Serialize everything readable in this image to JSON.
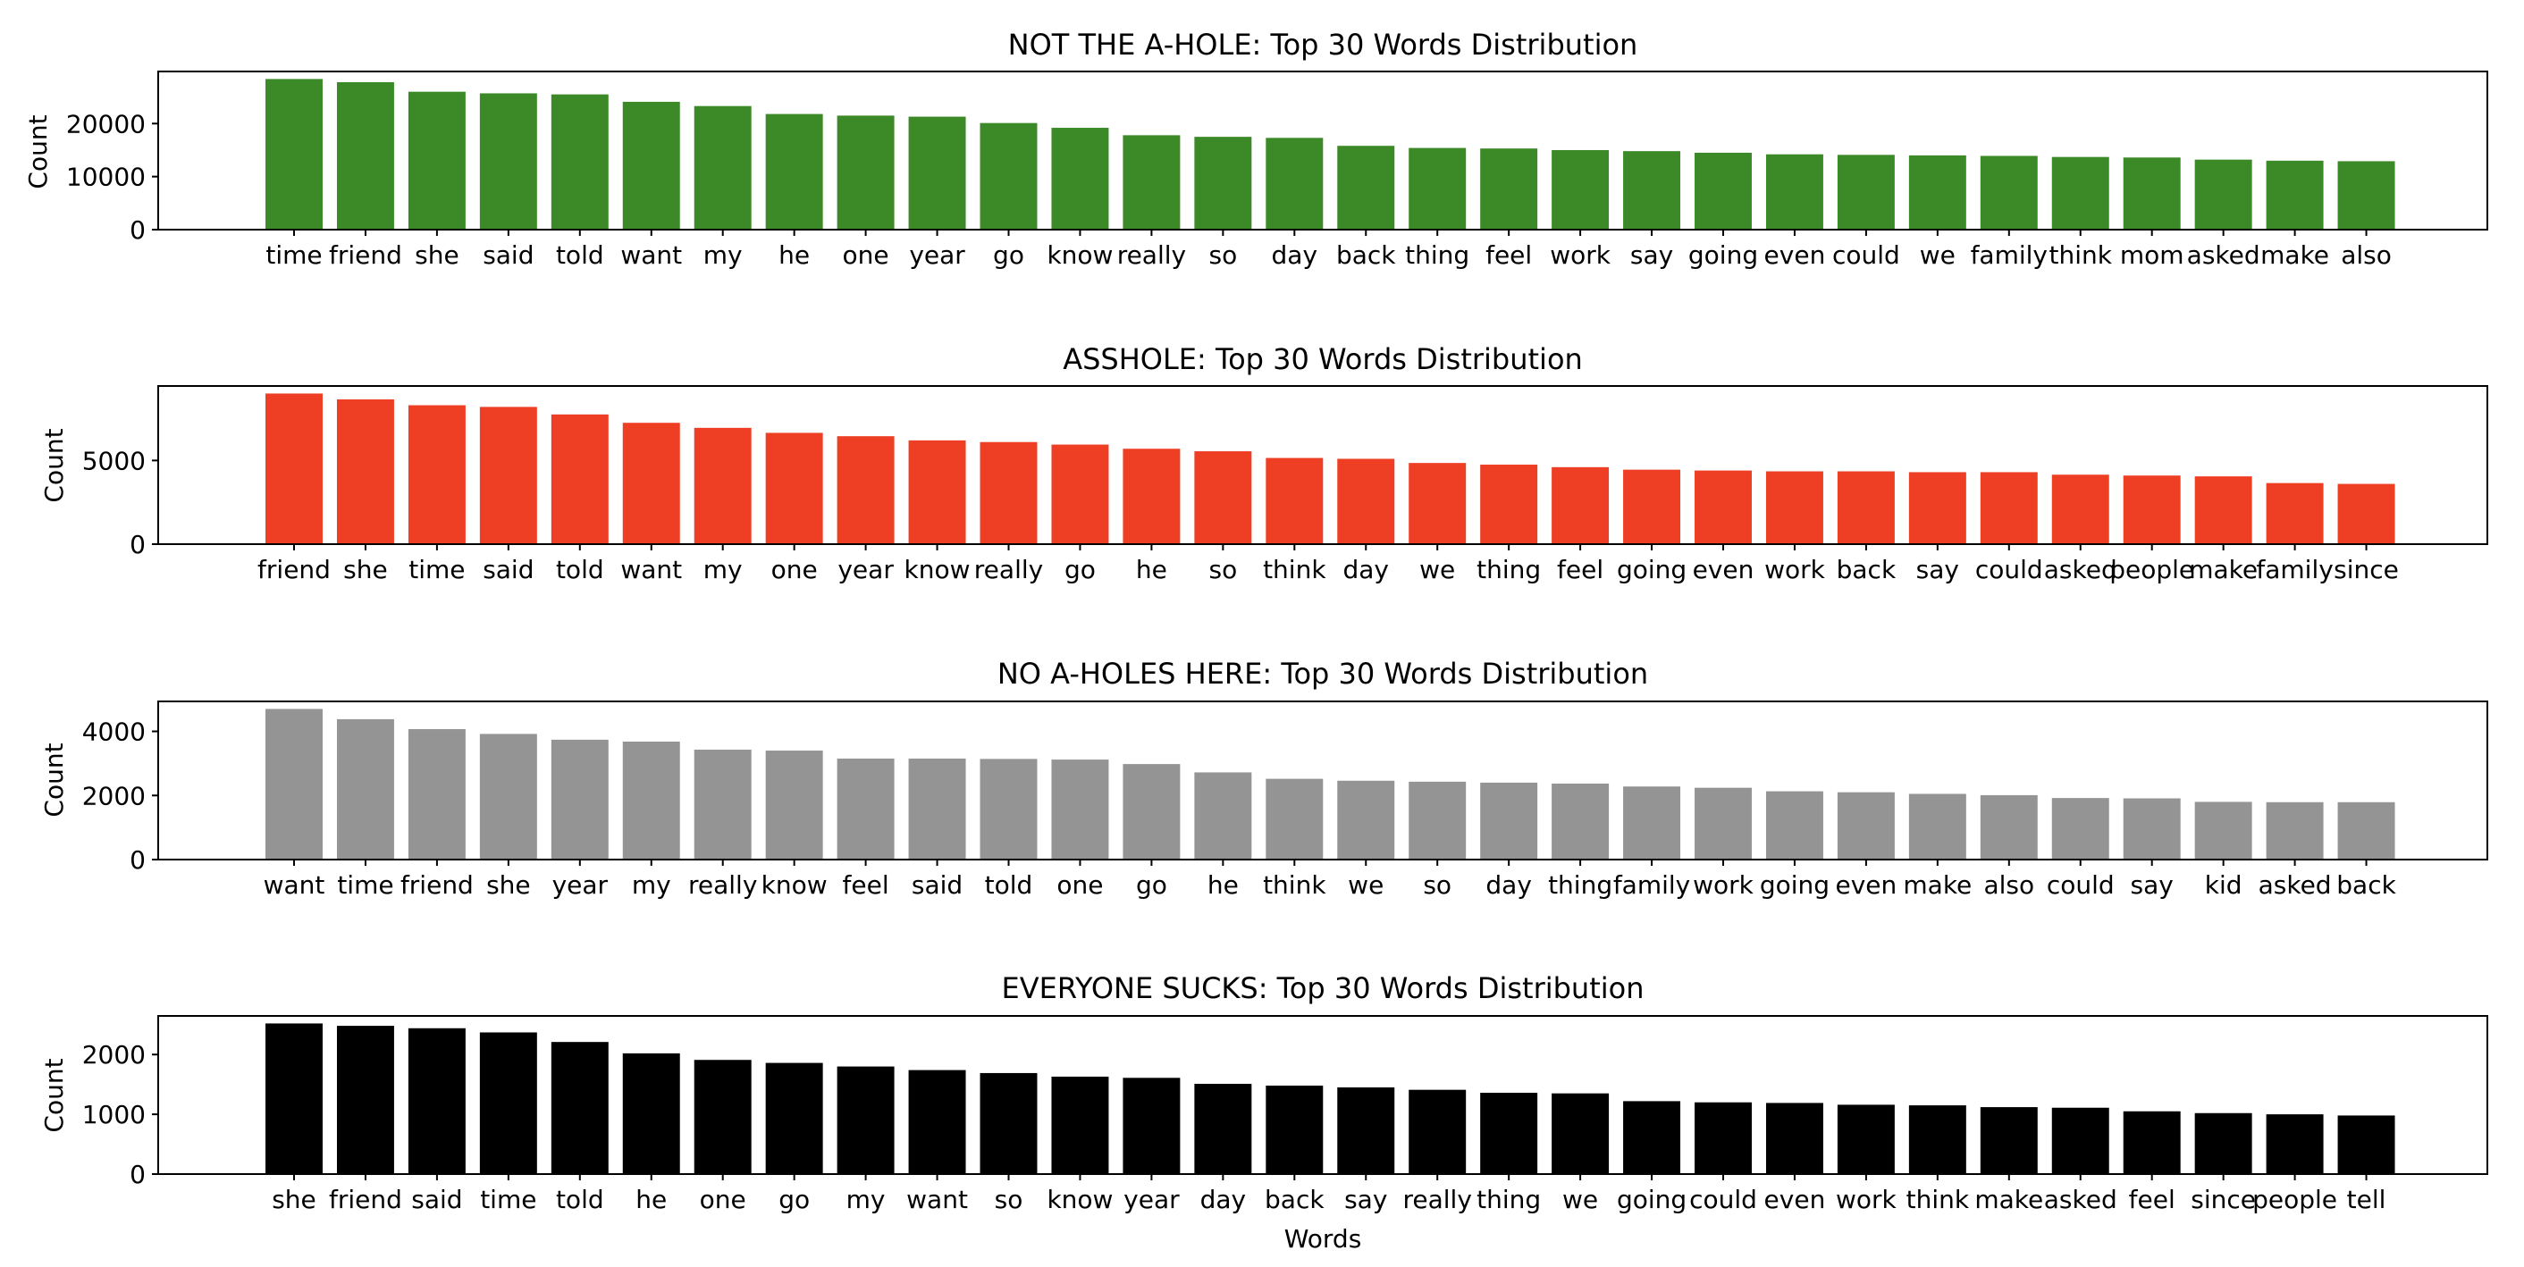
{
  "chart_data": [
    {
      "type": "bar",
      "title": "NOT THE A-HOLE: Top 30 Words Distribution",
      "ylabel": "Count",
      "xlabel": "",
      "color": "#3b8a27",
      "ylim": [
        0,
        29820
      ],
      "yticks": [
        0,
        10000,
        20000
      ],
      "ytick_labels": [
        "0",
        "10000",
        "20000"
      ],
      "categories": [
        "time",
        "friend",
        "she",
        "said",
        "told",
        "want",
        "my",
        "he",
        "one",
        "year",
        "go",
        "know",
        "really",
        "so",
        "day",
        "back",
        "thing",
        "feel",
        "work",
        "say",
        "going",
        "even",
        "could",
        "we",
        "family",
        "think",
        "mom",
        "asked",
        "make",
        "also"
      ],
      "values": [
        28400,
        27800,
        26000,
        25700,
        25500,
        24100,
        23300,
        21800,
        21500,
        21300,
        20100,
        19200,
        17800,
        17500,
        17300,
        15800,
        15400,
        15300,
        15000,
        14800,
        14500,
        14200,
        14100,
        14000,
        13900,
        13700,
        13600,
        13200,
        13000,
        12900
      ]
    },
    {
      "type": "bar",
      "title": "ASSHOLE: Top 30 Words Distribution",
      "ylabel": "Count",
      "xlabel": "",
      "color": "#ee3e24",
      "ylim": [
        0,
        9450
      ],
      "yticks": [
        0,
        5000
      ],
      "ytick_labels": [
        "0",
        "5000"
      ],
      "categories": [
        "friend",
        "she",
        "time",
        "said",
        "told",
        "want",
        "my",
        "one",
        "year",
        "know",
        "really",
        "go",
        "he",
        "so",
        "think",
        "day",
        "we",
        "thing",
        "feel",
        "going",
        "even",
        "work",
        "back",
        "say",
        "could",
        "asked",
        "people",
        "make",
        "family",
        "since"
      ],
      "values": [
        9000,
        8650,
        8300,
        8200,
        7750,
        7250,
        6950,
        6650,
        6450,
        6200,
        6100,
        5950,
        5700,
        5550,
        5150,
        5100,
        4850,
        4750,
        4600,
        4450,
        4400,
        4350,
        4350,
        4300,
        4300,
        4150,
        4100,
        4050,
        3650,
        3600
      ]
    },
    {
      "type": "bar",
      "title": "NO A-HOLES HERE: Top 30 Words Distribution",
      "ylabel": "Count",
      "xlabel": "",
      "color": "#949494",
      "ylim": [
        0,
        4935
      ],
      "yticks": [
        0,
        2000,
        4000
      ],
      "ytick_labels": [
        "0",
        "2000",
        "4000"
      ],
      "categories": [
        "want",
        "time",
        "friend",
        "she",
        "year",
        "my",
        "really",
        "know",
        "feel",
        "said",
        "told",
        "one",
        "go",
        "he",
        "think",
        "we",
        "so",
        "day",
        "thing",
        "family",
        "work",
        "going",
        "even",
        "make",
        "also",
        "could",
        "say",
        "kid",
        "asked",
        "back"
      ],
      "values": [
        4700,
        4380,
        4070,
        3920,
        3740,
        3680,
        3430,
        3400,
        3150,
        3150,
        3140,
        3120,
        2980,
        2720,
        2520,
        2460,
        2430,
        2400,
        2370,
        2280,
        2240,
        2130,
        2100,
        2050,
        2010,
        1920,
        1910,
        1800,
        1790,
        1790
      ]
    },
    {
      "type": "bar",
      "title": "EVERYONE SUCKS: Top 30 Words Distribution",
      "ylabel": "Count",
      "xlabel": "Words",
      "color": "#000000",
      "ylim": [
        0,
        2646
      ],
      "yticks": [
        0,
        1000,
        2000
      ],
      "ytick_labels": [
        "0",
        "1000",
        "2000"
      ],
      "categories": [
        "she",
        "friend",
        "said",
        "time",
        "told",
        "he",
        "one",
        "go",
        "my",
        "want",
        "so",
        "know",
        "year",
        "day",
        "back",
        "say",
        "really",
        "thing",
        "we",
        "going",
        "could",
        "even",
        "work",
        "think",
        "make",
        "asked",
        "feel",
        "since",
        "people",
        "tell"
      ],
      "values": [
        2520,
        2480,
        2440,
        2370,
        2210,
        2020,
        1910,
        1860,
        1800,
        1740,
        1690,
        1630,
        1610,
        1510,
        1480,
        1450,
        1410,
        1360,
        1350,
        1220,
        1200,
        1190,
        1160,
        1150,
        1120,
        1110,
        1050,
        1020,
        1000,
        980
      ]
    }
  ]
}
